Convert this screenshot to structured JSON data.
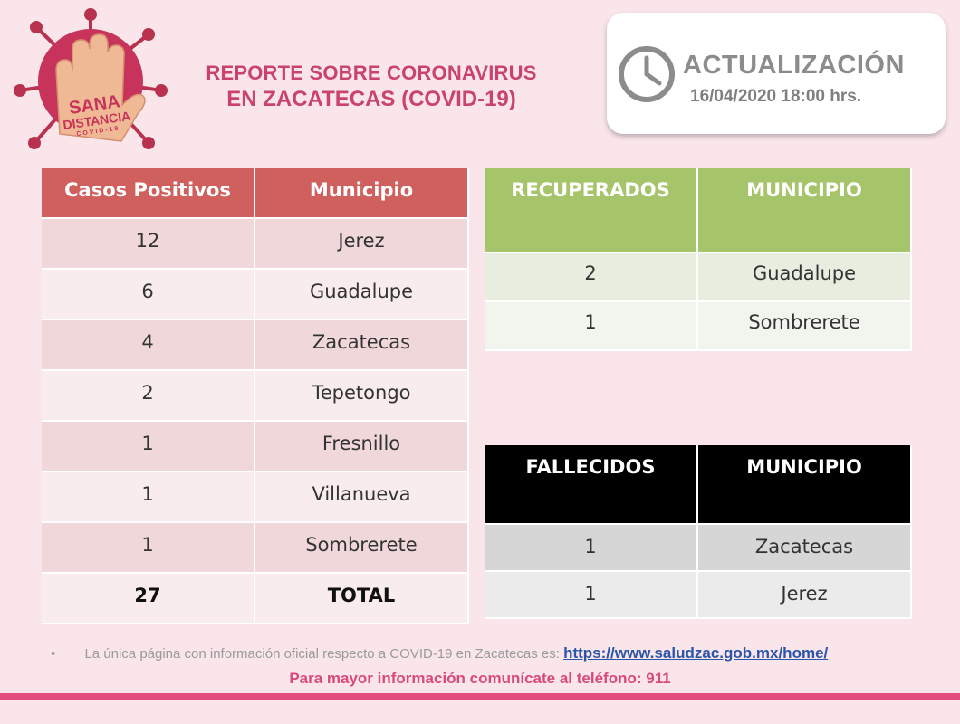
{
  "logo": {
    "text_line1": "SANA",
    "text_line2": "DISTANCIA",
    "text_line3": "COVID-19"
  },
  "header": {
    "title_line1": "REPORTE SOBRE CORONAVIRUS",
    "title_line2": "EN ZACATECAS  (COVID-19)"
  },
  "update": {
    "label": "ACTUALIZACIÓN",
    "datetime": "16/04/2020 18:00 hrs."
  },
  "casos": {
    "headers": [
      "Casos Positivos",
      "Municipio"
    ],
    "rows": [
      {
        "count": "12",
        "municipio": "Jerez"
      },
      {
        "count": "6",
        "municipio": "Guadalupe"
      },
      {
        "count": "4",
        "municipio": "Zacatecas"
      },
      {
        "count": "2",
        "municipio": "Tepetongo"
      },
      {
        "count": "1",
        "municipio": "Fresnillo"
      },
      {
        "count": "1",
        "municipio": "Villanueva"
      },
      {
        "count": "1",
        "municipio": "Sombrerete"
      }
    ],
    "total": {
      "count": "27",
      "label": "TOTAL"
    }
  },
  "recuperados": {
    "headers": [
      "RECUPERADOS",
      "MUNICIPIO"
    ],
    "rows": [
      {
        "count": "2",
        "municipio": "Guadalupe"
      },
      {
        "count": "1",
        "municipio": "Sombrerete"
      }
    ]
  },
  "fallecidos": {
    "headers": [
      "FALLECIDOS",
      "MUNICIPIO"
    ],
    "rows": [
      {
        "count": "1",
        "municipio": "Zacatecas"
      },
      {
        "count": "1",
        "municipio": "Jerez"
      }
    ]
  },
  "footer": {
    "bullet": "•",
    "note": "La única página con información oficial respecto a COVID-19 en Zacatecas es: ",
    "link": "https://www.saludzac.gob.mx/home/",
    "phone": "Para mayor información comunícate al teléfono: 911"
  },
  "colors": {
    "background": "#fae6ea",
    "casos_header": "#d0605e",
    "recuperados_header": "#a6c46a",
    "fallecidos_header": "#000000",
    "title": "#c9436a",
    "bottom_bar": "#e34f7d"
  }
}
